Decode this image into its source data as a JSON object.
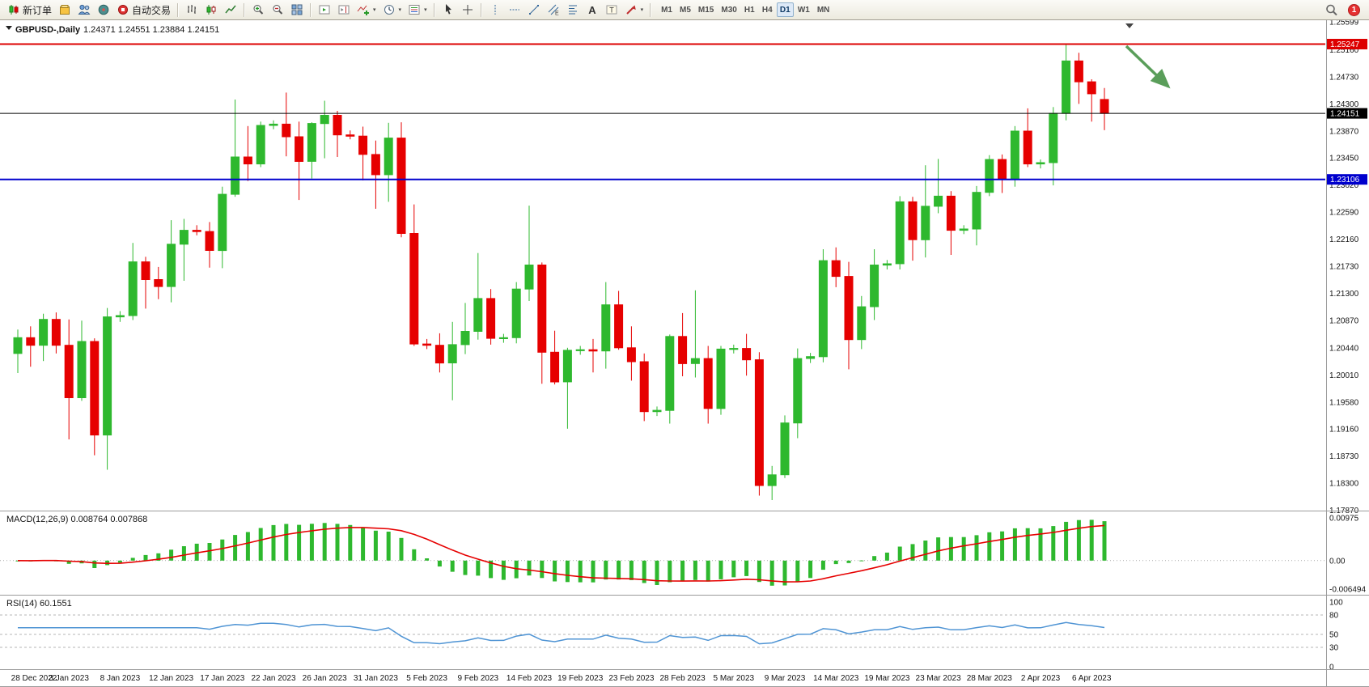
{
  "toolbar": {
    "new_order_label": "新订单",
    "autotrade_label": "自动交易",
    "timeframes": [
      "M1",
      "M5",
      "M15",
      "M30",
      "H1",
      "H4",
      "D1",
      "W1",
      "MN"
    ],
    "active_timeframe": "D1",
    "notification_badge": "1"
  },
  "chart": {
    "title": "GBPUSD-,Daily",
    "ohlc_text": "1.24371 1.24551 1.23884 1.24151",
    "colors": {
      "up": "#2eb82e",
      "down": "#e60000",
      "macd_hist": "#2eb82e",
      "macd_signal": "#e60000",
      "rsi": "#4f94d4",
      "annotation_arrow": "#3e8e3e"
    },
    "price_axis_labels": [
      "1.25599",
      "1.25160",
      "1.24730",
      "1.24300",
      "1.23870",
      "1.23450",
      "1.23020",
      "1.22590",
      "1.22160",
      "1.21730",
      "1.21300",
      "1.20870",
      "1.20440",
      "1.20010",
      "1.19580",
      "1.19160",
      "1.18730",
      "1.18300",
      "1.17870"
    ],
    "hlines": [
      {
        "name": "resistance-line",
        "price": 1.25247,
        "color": "#dd0000",
        "width": 2,
        "badge": "1.25247"
      },
      {
        "name": "bid-price-line",
        "price": 1.24151,
        "color": "#000000",
        "width": 1,
        "badge": "1.24151"
      },
      {
        "name": "support-line",
        "price": 1.23106,
        "color": "#0000cd",
        "width": 2,
        "badge": "1.23106"
      }
    ],
    "time_labels": [
      "28 Dec 2022",
      "3 Jan 2023",
      "8 Jan 2023",
      "12 Jan 2023",
      "17 Jan 2023",
      "22 Jan 2023",
      "26 Jan 2023",
      "31 Jan 2023",
      "5 Feb 2023",
      "9 Feb 2023",
      "14 Feb 2023",
      "19 Feb 2023",
      "23 Feb 2023",
      "28 Feb 2023",
      "5 Mar 2023",
      "9 Mar 2023",
      "14 Mar 2023",
      "19 Mar 2023",
      "23 Mar 2023",
      "28 Mar 2023",
      "2 Apr 2023",
      "6 Apr 2023"
    ],
    "annotation": {
      "type": "arrow",
      "direction": "down-right"
    }
  },
  "macd_panel": {
    "label": "MACD(12,26,9) 0.008764 0.007868",
    "params": [
      12,
      26,
      9
    ],
    "current_macd": 0.008764,
    "current_signal": 0.007868,
    "axis_labels": [
      "0.00975",
      "0.00",
      "-0.006494"
    ]
  },
  "rsi_panel": {
    "label": "RSI(14) 60.1551",
    "period": 14,
    "current_value": 60.1551,
    "levels": [
      80,
      50,
      30
    ],
    "axis_labels": [
      "100",
      "80",
      "50",
      "30",
      "0"
    ]
  },
  "chart_data": {
    "type": "candlestick",
    "symbol": "GBPUSD-",
    "timeframe": "Daily",
    "price_range_top": 1.25599,
    "price_range_bottom": 1.1787,
    "last_bar_ohlc": {
      "open": 1.24371,
      "high": 1.24551,
      "low": 1.23884,
      "close": 1.24151
    },
    "bars_format": [
      "open",
      "high",
      "low",
      "close"
    ],
    "label_every_n_bars": 4,
    "bars": [
      [
        1.2035,
        1.2073,
        1.2004,
        1.206
      ],
      [
        1.206,
        1.2078,
        1.2014,
        1.2048
      ],
      [
        1.2048,
        1.2098,
        1.2023,
        1.2089
      ],
      [
        1.2089,
        1.21,
        1.2035,
        1.2048
      ],
      [
        1.2048,
        1.2089,
        1.1899,
        1.1965
      ],
      [
        1.1965,
        1.2087,
        1.196,
        1.2054
      ],
      [
        1.2054,
        1.2059,
        1.1874,
        1.1906
      ],
      [
        1.1906,
        1.2107,
        1.1851,
        1.2093
      ],
      [
        1.2093,
        1.2102,
        1.2085,
        1.2095
      ],
      [
        1.2095,
        1.221,
        1.2088,
        1.218
      ],
      [
        1.218,
        1.2188,
        1.2106,
        1.2152
      ],
      [
        1.2152,
        1.2172,
        1.2121,
        1.2141
      ],
      [
        1.2141,
        1.2246,
        1.2116,
        1.2208
      ],
      [
        1.2208,
        1.2248,
        1.215,
        1.223
      ],
      [
        1.223,
        1.2238,
        1.2222,
        1.2228
      ],
      [
        1.2228,
        1.2243,
        1.2171,
        1.2198
      ],
      [
        1.2198,
        1.2299,
        1.217,
        1.2287
      ],
      [
        1.2287,
        1.2437,
        1.2283,
        1.2346
      ],
      [
        1.2346,
        1.2395,
        1.2308,
        1.2335
      ],
      [
        1.2335,
        1.2402,
        1.233,
        1.2396
      ],
      [
        1.2396,
        1.2404,
        1.239,
        1.2398
      ],
      [
        1.2398,
        1.2448,
        1.2347,
        1.2378
      ],
      [
        1.2378,
        1.2402,
        1.2278,
        1.2339
      ],
      [
        1.2339,
        1.2401,
        1.2312,
        1.2399
      ],
      [
        1.2399,
        1.2435,
        1.2344,
        1.2412
      ],
      [
        1.2412,
        1.2419,
        1.2346,
        1.2381
      ],
      [
        1.2381,
        1.2388,
        1.2374,
        1.2379
      ],
      [
        1.2379,
        1.2394,
        1.2309,
        1.235
      ],
      [
        1.235,
        1.2372,
        1.2264,
        1.2318
      ],
      [
        1.2318,
        1.24,
        1.2275,
        1.2376
      ],
      [
        1.2376,
        1.2401,
        1.2219,
        1.2225
      ],
      [
        1.2225,
        1.2271,
        1.2047,
        1.205
      ],
      [
        1.205,
        1.2058,
        1.2042,
        1.2048
      ],
      [
        1.2048,
        1.2067,
        1.2005,
        1.202
      ],
      [
        1.202,
        1.2085,
        1.1961,
        1.2049
      ],
      [
        1.2049,
        1.2115,
        1.2034,
        1.207
      ],
      [
        1.207,
        1.2194,
        1.2057,
        1.2122
      ],
      [
        1.2122,
        1.2137,
        1.2049,
        1.2059
      ],
      [
        1.2059,
        1.2066,
        1.2052,
        1.206
      ],
      [
        1.206,
        1.2148,
        1.2051,
        1.2137
      ],
      [
        1.2137,
        1.2269,
        1.2118,
        1.2175
      ],
      [
        1.2175,
        1.2179,
        1.1987,
        1.2037
      ],
      [
        1.2037,
        1.2071,
        1.1986,
        1.199
      ],
      [
        1.199,
        1.2044,
        1.1916,
        1.204
      ],
      [
        1.204,
        1.2047,
        1.2033,
        1.2041
      ],
      [
        1.2041,
        1.2058,
        1.2005,
        1.2039
      ],
      [
        1.2039,
        1.2148,
        1.2011,
        1.2112
      ],
      [
        1.2112,
        1.2134,
        1.2041,
        1.2044
      ],
      [
        1.2044,
        1.2078,
        1.1992,
        1.2022
      ],
      [
        1.2022,
        1.2035,
        1.1928,
        1.1943
      ],
      [
        1.1943,
        1.1951,
        1.1936,
        1.1945
      ],
      [
        1.1945,
        1.2065,
        1.1924,
        1.2062
      ],
      [
        1.2062,
        1.2099,
        1.1999,
        1.2019
      ],
      [
        1.2019,
        1.2135,
        1.1997,
        1.2027
      ],
      [
        1.2027,
        1.2047,
        1.1924,
        1.1948
      ],
      [
        1.1948,
        1.2047,
        1.1938,
        1.2042
      ],
      [
        1.2042,
        1.2049,
        1.2035,
        1.2043
      ],
      [
        1.2043,
        1.2066,
        1.2,
        1.2025
      ],
      [
        1.2025,
        1.2037,
        1.181,
        1.1826
      ],
      [
        1.1826,
        1.1857,
        1.1803,
        1.1843
      ],
      [
        1.1843,
        1.1937,
        1.1838,
        1.1925
      ],
      [
        1.1925,
        1.2043,
        1.1901,
        1.2027
      ],
      [
        1.2027,
        1.2036,
        1.202,
        1.203
      ],
      [
        1.203,
        1.22,
        1.2021,
        1.2182
      ],
      [
        1.2182,
        1.2203,
        1.214,
        1.2157
      ],
      [
        1.2157,
        1.218,
        1.201,
        1.2057
      ],
      [
        1.2057,
        1.2126,
        1.2042,
        1.2109
      ],
      [
        1.2109,
        1.22,
        1.2088,
        1.2175
      ],
      [
        1.2175,
        1.2183,
        1.2168,
        1.2177
      ],
      [
        1.2177,
        1.2284,
        1.2168,
        1.2275
      ],
      [
        1.2275,
        1.2283,
        1.2182,
        1.2215
      ],
      [
        1.2215,
        1.2333,
        1.2187,
        1.2268
      ],
      [
        1.2268,
        1.2343,
        1.2257,
        1.2284
      ],
      [
        1.2284,
        1.2292,
        1.2191,
        1.223
      ],
      [
        1.223,
        1.2238,
        1.2224,
        1.2232
      ],
      [
        1.2232,
        1.23,
        1.2206,
        1.229
      ],
      [
        1.229,
        1.2349,
        1.2284,
        1.2342
      ],
      [
        1.2342,
        1.235,
        1.2289,
        1.2312
      ],
      [
        1.2312,
        1.2395,
        1.2299,
        1.2387
      ],
      [
        1.2387,
        1.2423,
        1.233,
        1.2335
      ],
      [
        1.2335,
        1.2342,
        1.2328,
        1.2337
      ],
      [
        1.2337,
        1.2425,
        1.2301,
        1.2415
      ],
      [
        1.2415,
        1.2525,
        1.2404,
        1.2498
      ],
      [
        1.2498,
        1.2511,
        1.243,
        1.2465
      ],
      [
        1.2465,
        1.2469,
        1.2402,
        1.2446
      ],
      [
        1.24371,
        1.24551,
        1.23884,
        1.24151
      ]
    ]
  }
}
